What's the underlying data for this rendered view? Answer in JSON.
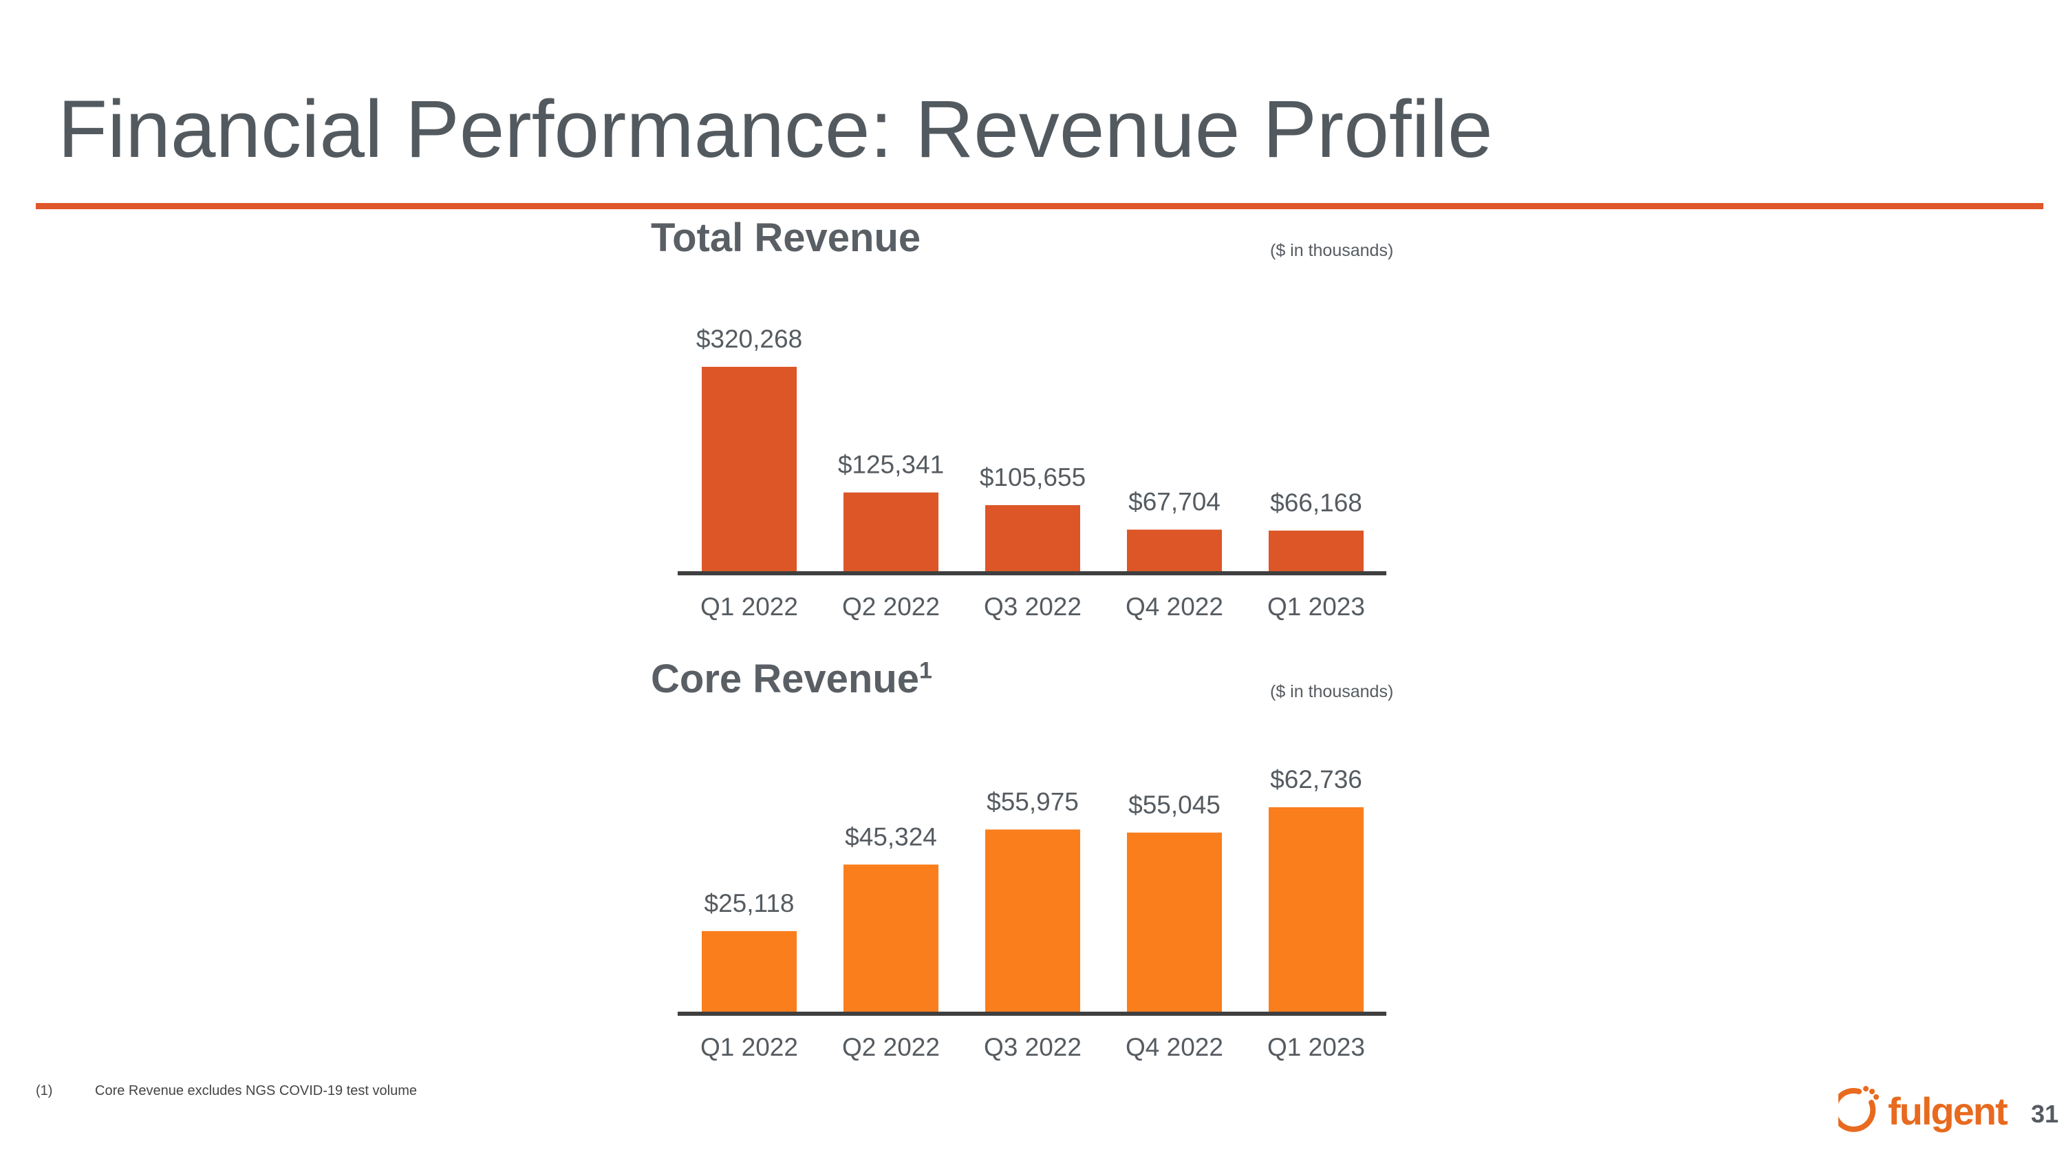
{
  "slide": {
    "title": "Financial Performance: Revenue Profile",
    "page_number": "31",
    "accent_color": "#e0572a",
    "footnote": {
      "marker": "(1)",
      "text": "Core Revenue excludes NGS COVID-19 test volume"
    },
    "logo": {
      "text": "fulgent",
      "color": "#e86a1f"
    }
  },
  "chart_data": [
    {
      "type": "bar",
      "title": "Total Revenue",
      "title_superscript": "",
      "units_note": "($ in thousands)",
      "categories": [
        "Q1 2022",
        "Q2 2022",
        "Q3 2022",
        "Q4 2022",
        "Q1 2023"
      ],
      "values": [
        320268,
        125341,
        105655,
        67704,
        66168
      ],
      "value_labels": [
        "$320,268",
        "$125,341",
        "$105,655",
        "$67,704",
        "$66,168"
      ],
      "bar_color": "#dc5627",
      "ylim": [
        0,
        320268
      ],
      "grid": false
    },
    {
      "type": "bar",
      "title": "Core Revenue",
      "title_superscript": "1",
      "units_note": "($ in thousands)",
      "categories": [
        "Q1 2022",
        "Q2 2022",
        "Q3 2022",
        "Q4 2022",
        "Q1 2023"
      ],
      "values": [
        25118,
        45324,
        55975,
        55045,
        62736
      ],
      "value_labels": [
        "$25,118",
        "$45,324",
        "$55,975",
        "$55,045",
        "$62,736"
      ],
      "bar_color": "#fa7e1c",
      "ylim": [
        0,
        62736
      ],
      "grid": false
    }
  ]
}
